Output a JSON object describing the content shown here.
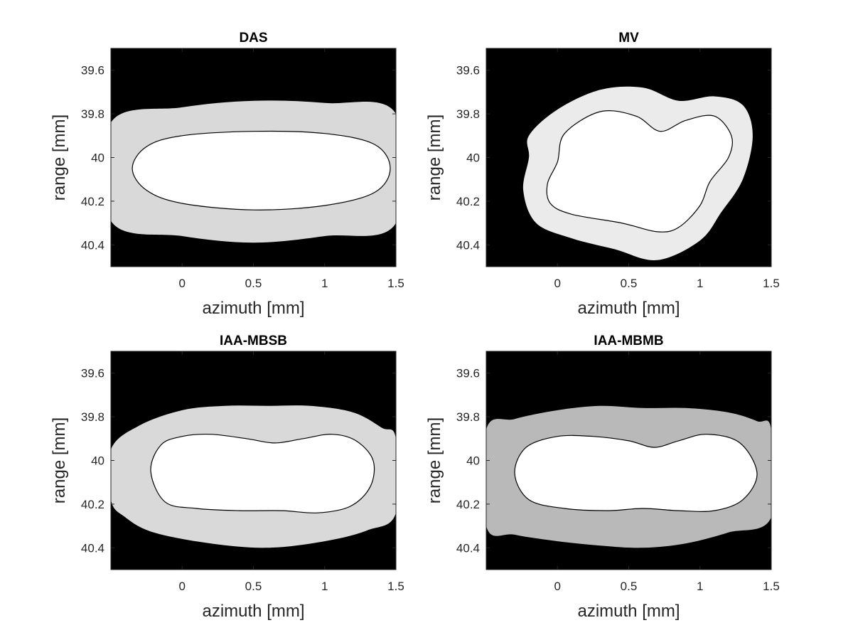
{
  "chart_data": [
    {
      "type": "contour",
      "title": "DAS",
      "xlabel": "azimuth [mm]",
      "ylabel": "range [mm]",
      "xlim": [
        -0.5,
        1.5
      ],
      "ylim": [
        39.5,
        40.5
      ],
      "y_reversed": true,
      "xticks": [
        "0",
        "0.5",
        "1",
        "1.5"
      ],
      "yticks": [
        "39.6",
        "39.8",
        "40",
        "40.2",
        "40.4"
      ],
      "background": "#000000",
      "outer_color": "#d9d9d9",
      "inner_color": "#ffffff",
      "outer_region": [
        [
          -0.5,
          39.84
        ],
        [
          0.0,
          39.77
        ],
        [
          0.5,
          39.74
        ],
        [
          1.0,
          39.75
        ],
        [
          1.5,
          39.8
        ],
        [
          1.5,
          40.3
        ],
        [
          1.0,
          40.36
        ],
        [
          0.5,
          40.39
        ],
        [
          0.0,
          40.36
        ],
        [
          -0.5,
          40.29
        ]
      ],
      "inner_contour": [
        [
          -0.35,
          40.05
        ],
        [
          -0.25,
          39.95
        ],
        [
          0.0,
          39.9
        ],
        [
          0.5,
          39.88
        ],
        [
          1.0,
          39.89
        ],
        [
          1.35,
          39.94
        ],
        [
          1.46,
          40.05
        ],
        [
          1.35,
          40.16
        ],
        [
          1.0,
          40.22
        ],
        [
          0.5,
          40.24
        ],
        [
          0.0,
          40.21
        ],
        [
          -0.25,
          40.15
        ]
      ]
    },
    {
      "type": "contour",
      "title": "MV",
      "xlabel": "azimuth [mm]",
      "ylabel": "range [mm]",
      "xlim": [
        -0.5,
        1.5
      ],
      "ylim": [
        39.5,
        40.5
      ],
      "y_reversed": true,
      "xticks": [
        "0",
        "0.5",
        "1",
        "1.5"
      ],
      "yticks": [
        "39.6",
        "39.8",
        "40",
        "40.2",
        "40.4"
      ],
      "background": "#000000",
      "outer_color": "#ebebeb",
      "inner_color": "#ffffff",
      "outer_region": [
        [
          -0.2,
          39.9
        ],
        [
          0.0,
          39.78
        ],
        [
          0.3,
          39.69
        ],
        [
          0.6,
          39.68
        ],
        [
          0.85,
          39.74
        ],
        [
          1.1,
          39.72
        ],
        [
          1.3,
          39.76
        ],
        [
          1.37,
          39.9
        ],
        [
          1.3,
          40.1
        ],
        [
          1.15,
          40.25
        ],
        [
          1.0,
          40.38
        ],
        [
          0.7,
          40.47
        ],
        [
          0.4,
          40.42
        ],
        [
          0.1,
          40.37
        ],
        [
          -0.15,
          40.3
        ],
        [
          -0.24,
          40.15
        ],
        [
          -0.2,
          40.0
        ]
      ],
      "inner_contour": [
        [
          0.05,
          39.89
        ],
        [
          0.3,
          39.79
        ],
        [
          0.55,
          39.81
        ],
        [
          0.72,
          39.88
        ],
        [
          0.9,
          39.83
        ],
        [
          1.1,
          39.81
        ],
        [
          1.22,
          39.9
        ],
        [
          1.2,
          40.0
        ],
        [
          1.07,
          40.11
        ],
        [
          1.0,
          40.22
        ],
        [
          0.85,
          40.32
        ],
        [
          0.7,
          40.34
        ],
        [
          0.45,
          40.3
        ],
        [
          0.1,
          40.26
        ],
        [
          -0.05,
          40.21
        ],
        [
          -0.07,
          40.12
        ],
        [
          0.0,
          40.02
        ]
      ]
    },
    {
      "type": "contour",
      "title": "IAA-MBSB",
      "xlabel": "azimuth [mm]",
      "ylabel": "range [mm]",
      "xlim": [
        -0.5,
        1.5
      ],
      "ylim": [
        39.5,
        40.5
      ],
      "y_reversed": true,
      "xticks": [
        "0",
        "0.5",
        "1",
        "1.5"
      ],
      "yticks": [
        "39.6",
        "39.8",
        "40",
        "40.2",
        "40.4"
      ],
      "background": "#000000",
      "outer_color": "#d9d9d9",
      "inner_color": "#ffffff",
      "outer_region": [
        [
          -0.5,
          39.95
        ],
        [
          -0.3,
          39.84
        ],
        [
          0.0,
          39.77
        ],
        [
          0.3,
          39.75
        ],
        [
          0.6,
          39.75
        ],
        [
          0.9,
          39.75
        ],
        [
          1.2,
          39.78
        ],
        [
          1.4,
          39.85
        ],
        [
          1.5,
          39.9
        ],
        [
          1.5,
          40.24
        ],
        [
          1.3,
          40.32
        ],
        [
          1.0,
          40.37
        ],
        [
          0.6,
          40.4
        ],
        [
          0.2,
          40.38
        ],
        [
          -0.2,
          40.33
        ],
        [
          -0.4,
          40.26
        ],
        [
          -0.5,
          40.18
        ]
      ],
      "inner_contour": [
        [
          -0.22,
          40.05
        ],
        [
          -0.15,
          39.93
        ],
        [
          0.0,
          39.89
        ],
        [
          0.2,
          39.88
        ],
        [
          0.45,
          39.9
        ],
        [
          0.65,
          39.92
        ],
        [
          0.85,
          39.9
        ],
        [
          1.05,
          39.88
        ],
        [
          1.22,
          39.91
        ],
        [
          1.34,
          40.0
        ],
        [
          1.32,
          40.12
        ],
        [
          1.18,
          40.21
        ],
        [
          0.95,
          40.24
        ],
        [
          0.7,
          40.23
        ],
        [
          0.4,
          40.23
        ],
        [
          0.1,
          40.22
        ],
        [
          -0.12,
          40.19
        ]
      ]
    },
    {
      "type": "contour",
      "title": "IAA-MBMB",
      "xlabel": "azimuth [mm]",
      "ylabel": "range [mm]",
      "xlim": [
        -0.5,
        1.5
      ],
      "ylim": [
        39.5,
        40.5
      ],
      "y_reversed": true,
      "xticks": [
        "0",
        "0.5",
        "1",
        "1.5"
      ],
      "yticks": [
        "39.6",
        "39.8",
        "40",
        "40.2",
        "40.4"
      ],
      "background": "#000000",
      "outer_color": "#b9b9b9",
      "inner_color": "#ffffff",
      "outer_region": [
        [
          -0.5,
          39.86
        ],
        [
          -0.3,
          39.81
        ],
        [
          0.0,
          39.77
        ],
        [
          0.3,
          39.75
        ],
        [
          0.6,
          39.76
        ],
        [
          0.9,
          39.76
        ],
        [
          1.2,
          39.78
        ],
        [
          1.4,
          39.82
        ],
        [
          1.5,
          39.86
        ],
        [
          1.5,
          40.26
        ],
        [
          1.2,
          40.33
        ],
        [
          0.9,
          40.38
        ],
        [
          0.6,
          40.4
        ],
        [
          0.3,
          40.39
        ],
        [
          0.0,
          40.37
        ],
        [
          -0.3,
          40.34
        ],
        [
          -0.5,
          40.3
        ]
      ],
      "inner_contour": [
        [
          -0.3,
          40.06
        ],
        [
          -0.22,
          39.94
        ],
        [
          0.0,
          39.89
        ],
        [
          0.25,
          39.89
        ],
        [
          0.5,
          39.91
        ],
        [
          0.68,
          39.94
        ],
        [
          0.85,
          39.91
        ],
        [
          1.05,
          39.88
        ],
        [
          1.28,
          39.92
        ],
        [
          1.4,
          40.06
        ],
        [
          1.3,
          40.18
        ],
        [
          1.1,
          40.23
        ],
        [
          0.85,
          40.23
        ],
        [
          0.6,
          40.22
        ],
        [
          0.35,
          40.23
        ],
        [
          0.05,
          40.22
        ],
        [
          -0.2,
          40.18
        ]
      ]
    }
  ]
}
